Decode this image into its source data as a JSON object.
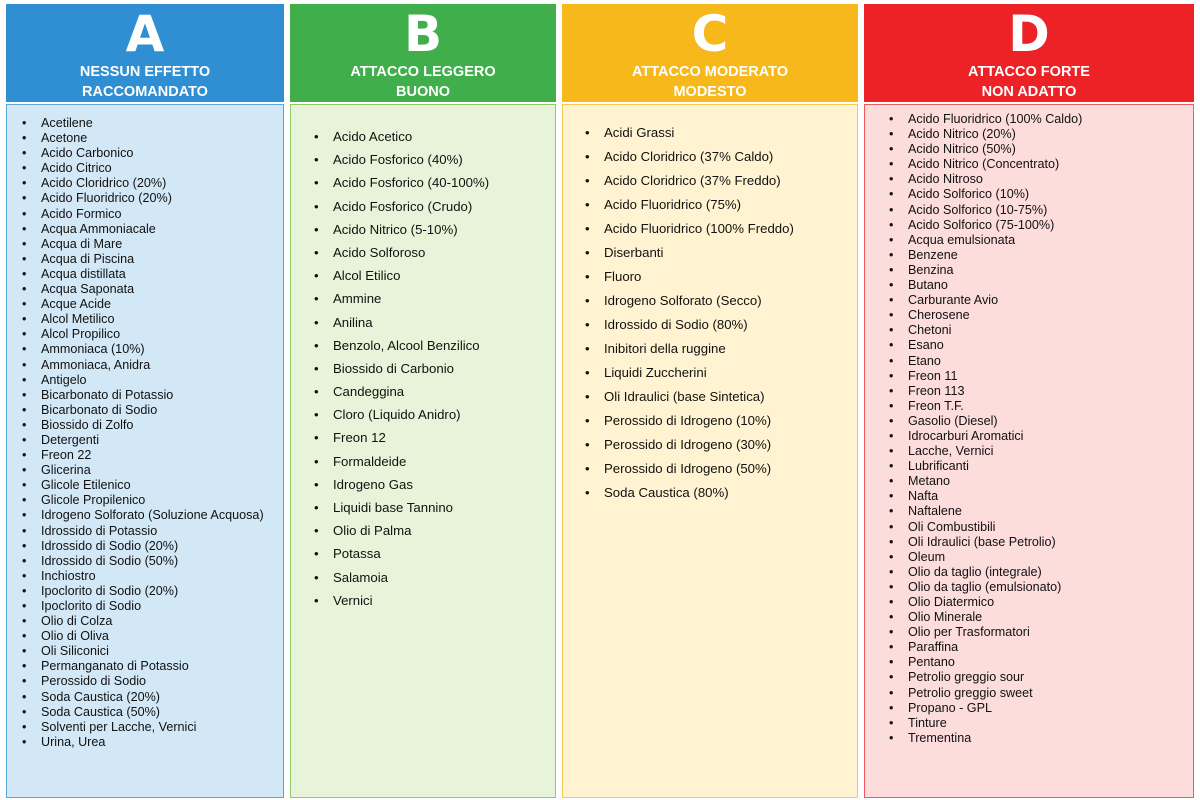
{
  "columns": [
    {
      "letter": "A",
      "line1": "NESSUN EFFETTO",
      "line2": "RACCOMANDATO",
      "color": "#2f8fd2",
      "items": [
        "Acetilene",
        "Acetone",
        "Acido Carbonico",
        "Acido Citrico",
        "Acido Cloridrico (20%)",
        "Acido Fluoridrico (20%)",
        "Acido Formico",
        "Acqua Ammoniacale",
        "Acqua di Mare",
        "Acqua di Piscina",
        "Acqua distillata",
        "Acqua Saponata",
        "Acque Acide",
        "Alcol Metilico",
        "Alcol Propilico",
        "Ammoniaca (10%)",
        "Ammoniaca, Anidra",
        "Antigelo",
        "Bicarbonato di Potassio",
        "Bicarbonato di Sodio",
        "Biossido di Zolfo",
        "Detergenti",
        "Freon 22",
        "Glicerina",
        "Glicole Etilenico",
        "Glicole Propilenico",
        "Idrogeno Solforato (Soluzione Acquosa)",
        "Idrossido di Potassio",
        "Idrossido di Sodio (20%)",
        "Idrossido di Sodio (50%)",
        "Inchiostro",
        "Ipoclorito di Sodio (20%)",
        "Ipoclorito di Sodio",
        "Olio di Colza",
        "Olio di Oliva",
        "Oli Siliconici",
        "Permanganato di Potassio",
        "Perossido di Sodio",
        "Soda Caustica (20%)",
        "Soda Caustica (50%)",
        "Solventi per Lacche, Vernici",
        "Urina, Urea"
      ]
    },
    {
      "letter": "B",
      "line1": "ATTACCO LEGGERO",
      "line2": "BUONO",
      "color": "#3fae4b",
      "items": [
        "Acido Acetico",
        "Acido Fosforico (40%)",
        "Acido Fosforico (40-100%)",
        "Acido Fosforico (Crudo)",
        "Acido Nitrico (5-10%)",
        "Acido Solforoso",
        "Alcol Etilico",
        "Ammine",
        "Anilina",
        "Benzolo, Alcool Benzilico",
        "Biossido di Carbonio",
        "Candeggina",
        "Cloro (Liquido Anidro)",
        "Freon 12",
        "Formaldeide",
        "Idrogeno Gas",
        "Liquidi base Tannino",
        "Olio di Palma",
        "Potassa",
        "Salamoia",
        "Vernici"
      ]
    },
    {
      "letter": "C",
      "line1": "ATTACCO MODERATO",
      "line2": "MODESTO",
      "color": "#f6b81b",
      "items": [
        "Acidi Grassi",
        "Acido Cloridrico (37% Caldo)",
        "Acido Cloridrico (37% Freddo)",
        "Acido Fluoridrico (75%)",
        "Acido Fluoridrico (100% Freddo)",
        "Diserbanti",
        "Fluoro",
        "Idrogeno Solforato (Secco)",
        "Idrossido di Sodio (80%)",
        "Inibitori della ruggine",
        "Liquidi Zuccherini",
        "Oli Idraulici (base Sintetica)",
        "Perossido di Idrogeno (10%)",
        "Perossido di Idrogeno (30%)",
        "Perossido di Idrogeno (50%)",
        "Soda Caustica (80%)"
      ]
    },
    {
      "letter": "D",
      "line1": "ATTACCO FORTE",
      "line2": "NON ADATTO",
      "color": "#ec2227",
      "items": [
        "Acido Fluoridrico (100% Caldo)",
        "Acido Nitrico (20%)",
        "Acido Nitrico (50%)",
        "Acido Nitrico (Concentrato)",
        "Acido Nitroso",
        "Acido Solforico (10%)",
        "Acido Solforico (10-75%)",
        "Acido Solforico (75-100%)",
        "Acqua emulsionata",
        "Benzene",
        "Benzina",
        "Butano",
        "Carburante Avio",
        "Cherosene",
        "Chetoni",
        "Esano",
        "Etano",
        "Freon 11",
        "Freon 113",
        "Freon T.F.",
        "Gasolio (Diesel)",
        "Idrocarburi Aromatici",
        "Lacche, Vernici",
        "Lubrificanti",
        "Metano",
        "Nafta",
        "Naftalene",
        "Oli Combustibili",
        "Oli Idraulici (base Petrolio)",
        "Oleum",
        "Olio da taglio (integrale)",
        "Olio da taglio (emulsionato)",
        "Olio Diatermico",
        "Olio Minerale",
        "Olio per Trasformatori",
        "Paraffina",
        "Pentano",
        "Petrolio greggio sour",
        "Petrolio greggio sweet",
        "Propano - GPL",
        "Tinture",
        "Trementina"
      ]
    }
  ]
}
